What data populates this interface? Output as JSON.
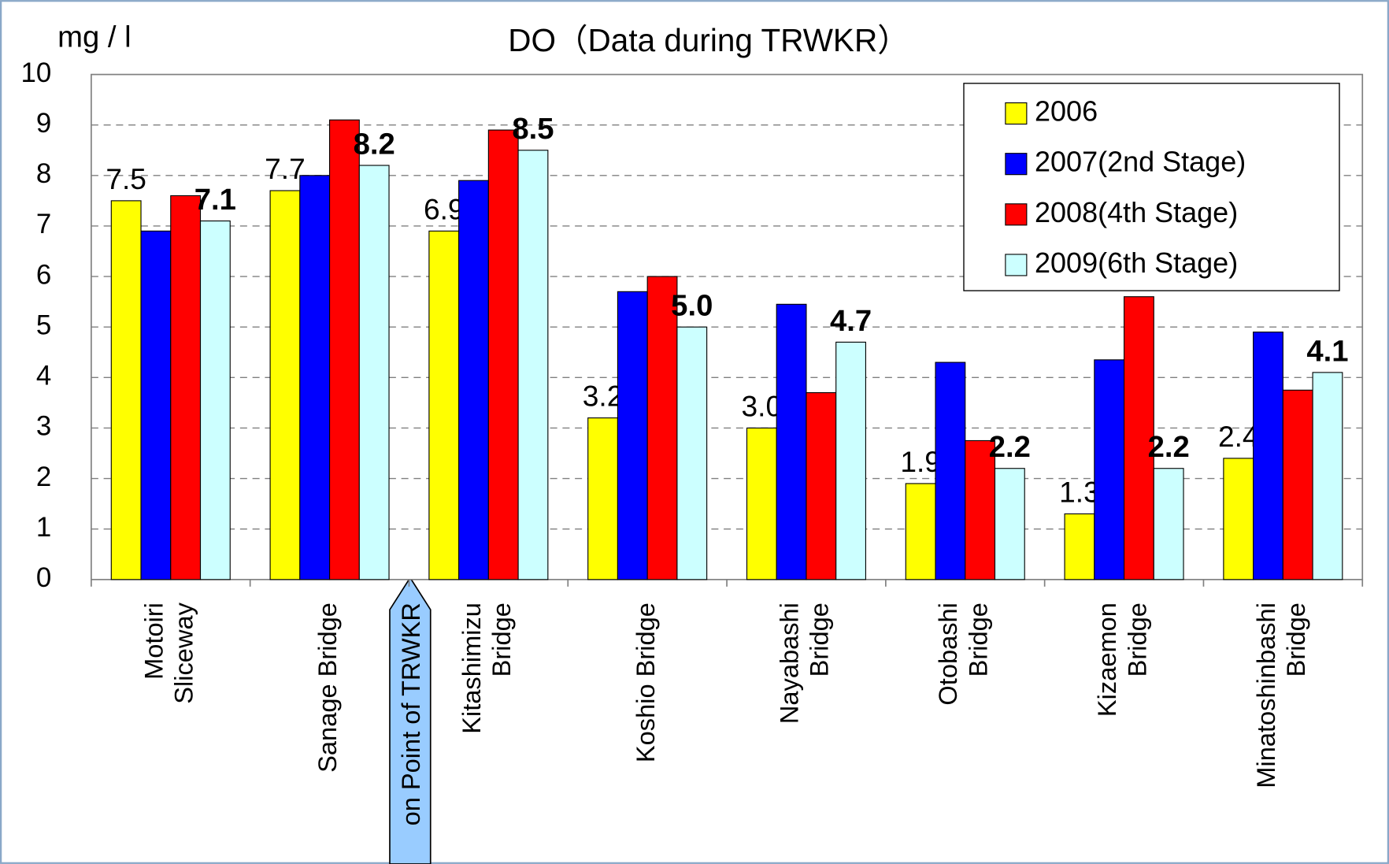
{
  "chart_data": {
    "type": "bar",
    "title": "DO（Data during TRWKR）",
    "y_axis_label": "mg / l",
    "annotation": "on Point of TRWKR",
    "categories": [
      [
        "Motoiri",
        "Sliceway"
      ],
      [
        "Sanage Bridge"
      ],
      [
        "Kitashimizu",
        "Bridge"
      ],
      [
        "Koshio Bridge"
      ],
      [
        "Nayabashi",
        "Bridge"
      ],
      [
        "Otobashi",
        "Bridge"
      ],
      [
        "Kizaemon",
        "Bridge"
      ],
      [
        "Minatoshinbashi",
        "Bridge"
      ]
    ],
    "series": [
      {
        "name": "2006",
        "color": "#ffff00",
        "values": [
          7.5,
          7.7,
          6.9,
          3.2,
          3.0,
          1.9,
          1.3,
          2.4
        ],
        "value_labels": [
          "7.5",
          "7.7",
          "6.9",
          "3.2",
          "3.0",
          "1.9",
          "1.3",
          "2.4"
        ]
      },
      {
        "name": "2007(2nd Stage)",
        "color": "#0000ff",
        "values": [
          6.9,
          8.0,
          7.9,
          5.7,
          5.45,
          4.3,
          4.35,
          4.9
        ]
      },
      {
        "name": "2008(4th Stage)",
        "color": "#ff0000",
        "values": [
          7.6,
          9.1,
          8.9,
          6.0,
          3.7,
          2.75,
          5.6,
          3.75
        ]
      },
      {
        "name": "2009(6th Stage)",
        "color": "#ccffff",
        "values": [
          7.1,
          8.2,
          8.5,
          5.0,
          4.7,
          2.2,
          2.2,
          4.1
        ],
        "value_labels": [
          "7.1",
          "8.2",
          "8.5",
          "5.0",
          "4.7",
          "2.2",
          "2.2",
          "4.1"
        ]
      }
    ],
    "ylim": [
      0,
      10
    ],
    "yticks": [
      0,
      1,
      2,
      3,
      4,
      5,
      6,
      7,
      8,
      9,
      10
    ],
    "grid": true,
    "legend": "top-right"
  }
}
